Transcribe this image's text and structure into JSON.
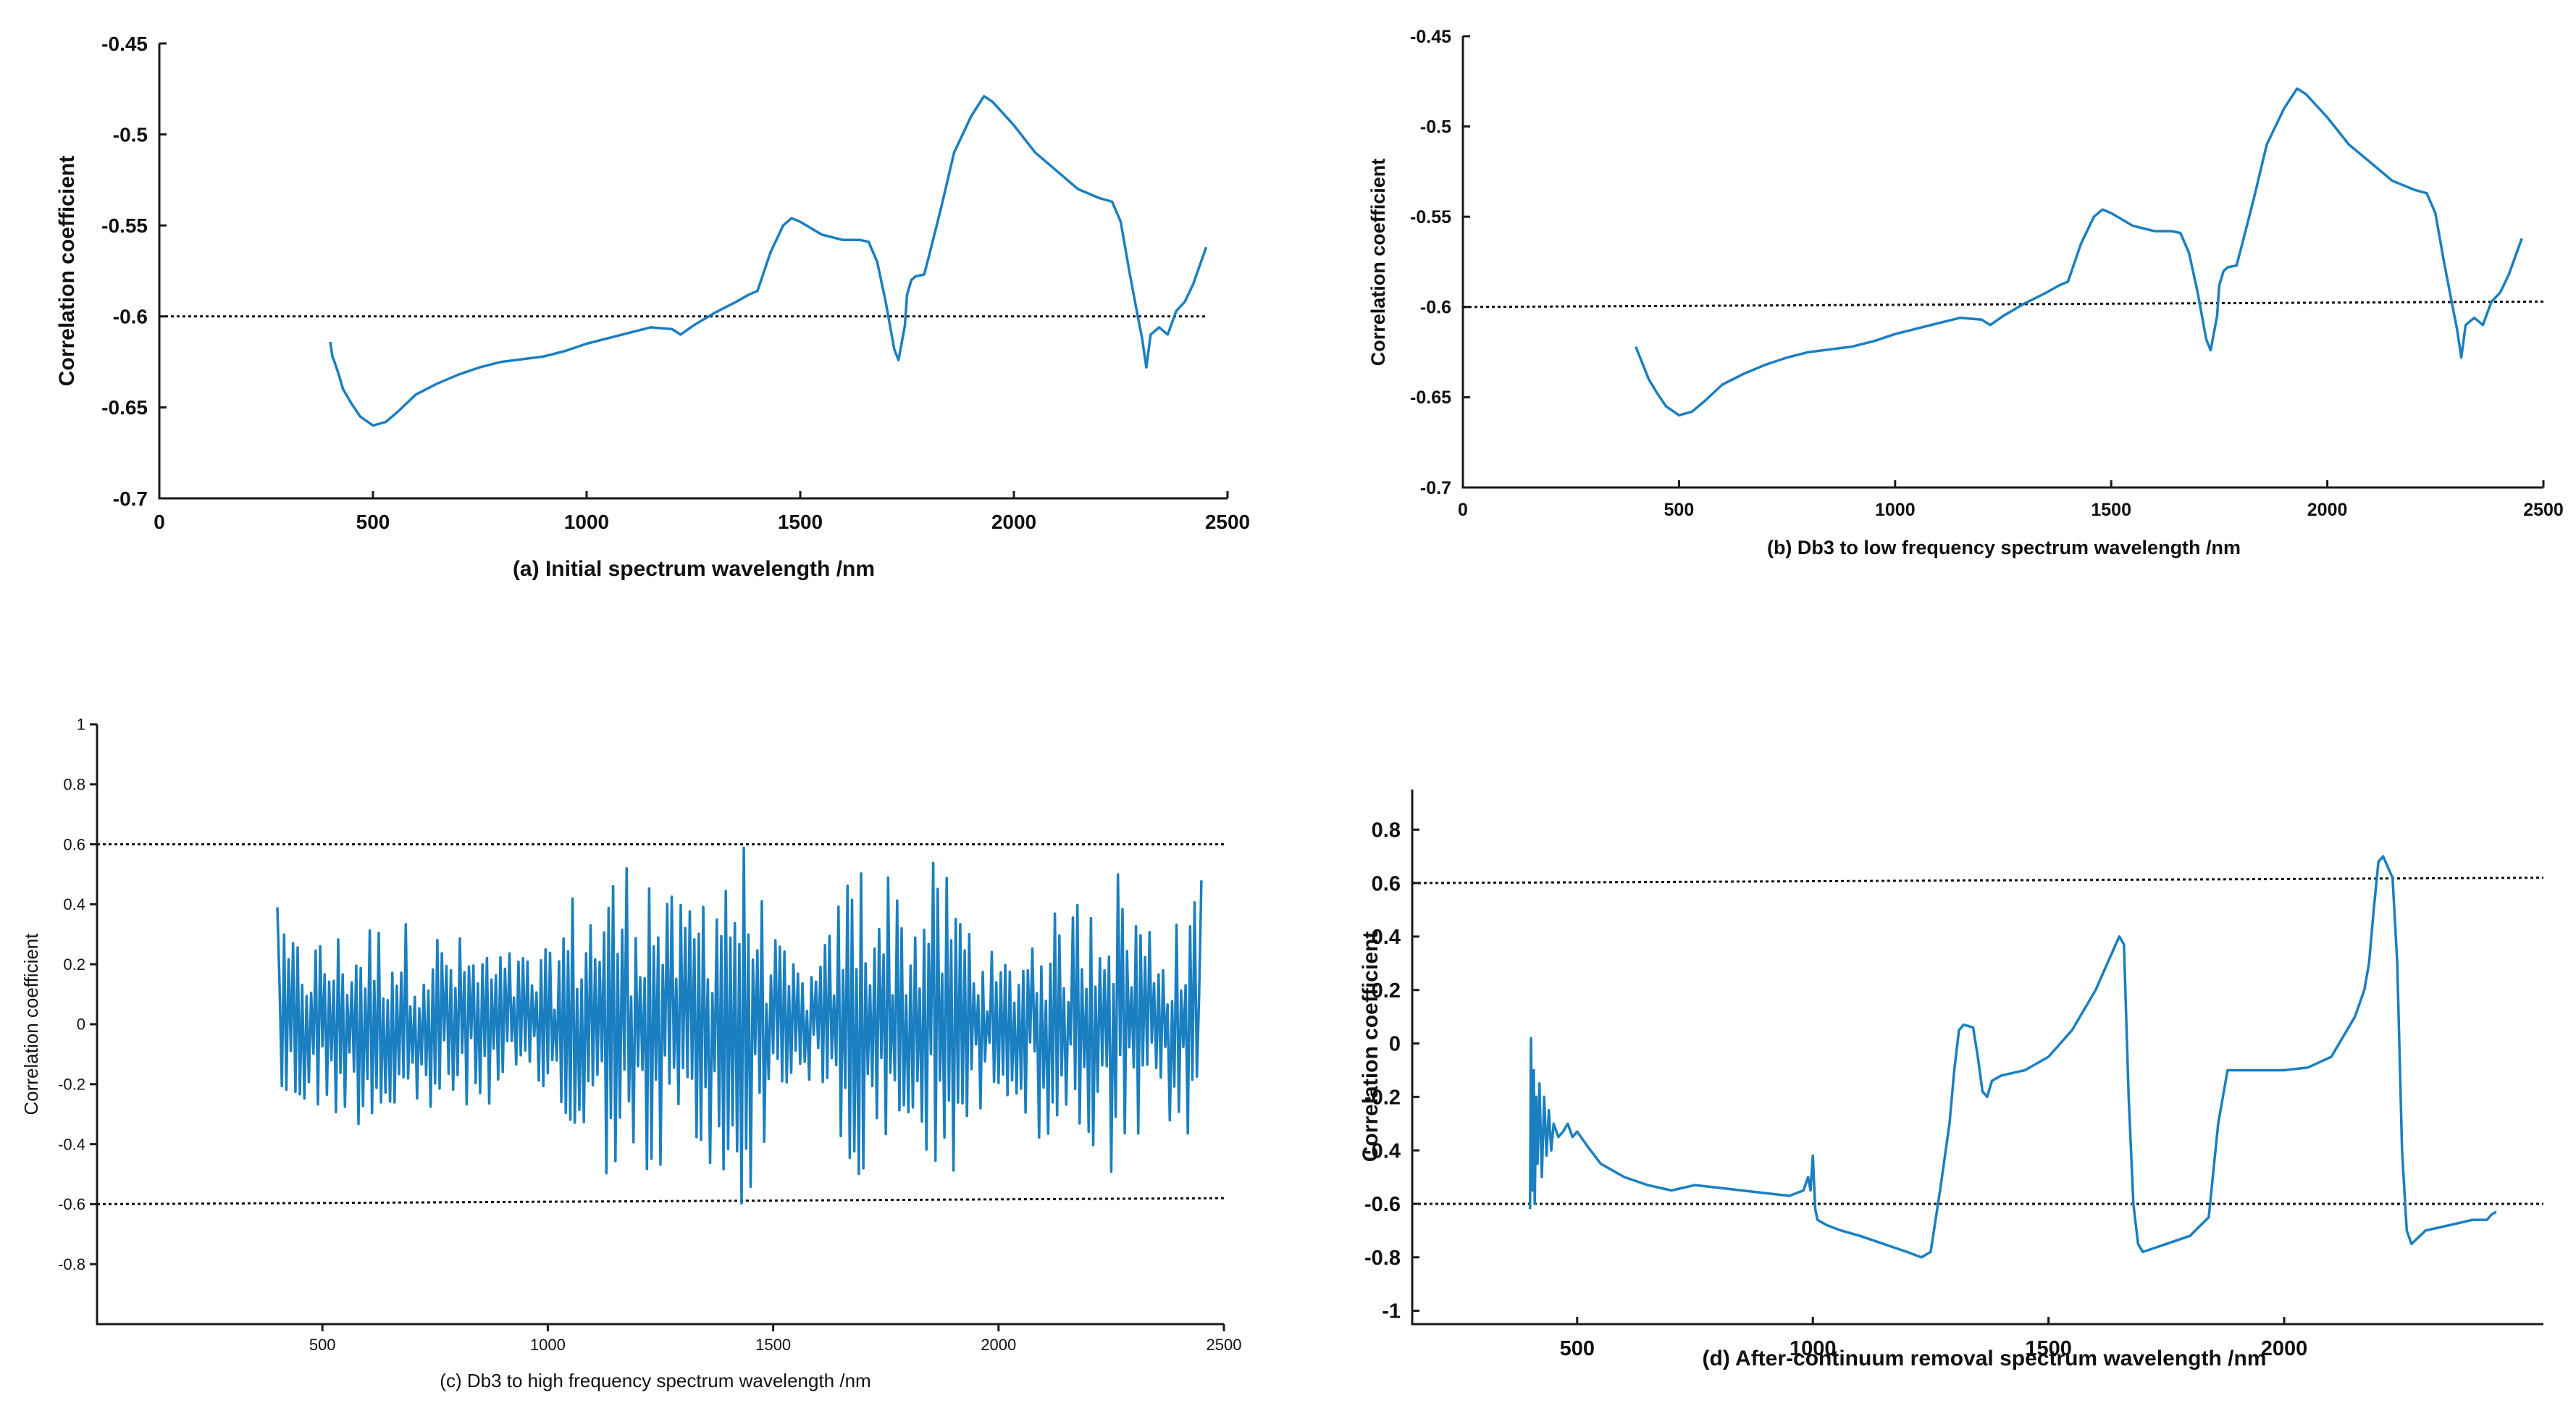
{
  "colors": {
    "series": "#1a7fc1",
    "axis": "#1a1a1a",
    "reference": "#111111"
  },
  "chart_data": [
    {
      "id": "a",
      "type": "line",
      "xlabel": "(a)  Initial spectrum wavelength /nm",
      "ylabel": "Correlation coefficient",
      "xlim": [
        0,
        2500
      ],
      "ylim": [
        -0.7,
        -0.45
      ],
      "xticks": [
        0,
        500,
        1000,
        1500,
        2000,
        2500
      ],
      "xtick_labels": [
        "0",
        "500",
        "1000",
        "1500",
        "2000",
        "2500"
      ],
      "yticks": [
        -0.7,
        -0.65,
        -0.6,
        -0.55,
        -0.5,
        -0.45
      ],
      "ytick_labels": [
        "-0.7",
        "-0.65",
        "-0.6",
        "-0.55",
        "-0.5",
        "-0.45"
      ],
      "reference_lines": [
        {
          "y": -0.6,
          "x_from": 0,
          "x_to": 2450
        }
      ],
      "series": [
        {
          "name": "correlation",
          "x": [
            400,
            405,
            410,
            420,
            430,
            450,
            470,
            500,
            530,
            560,
            600,
            650,
            700,
            750,
            800,
            900,
            950,
            1000,
            1050,
            1100,
            1150,
            1200,
            1220,
            1250,
            1300,
            1350,
            1380,
            1400,
            1430,
            1460,
            1480,
            1500,
            1550,
            1600,
            1640,
            1660,
            1680,
            1700,
            1720,
            1730,
            1745,
            1750,
            1760,
            1770,
            1790,
            1800,
            1830,
            1860,
            1900,
            1930,
            1950,
            2000,
            2050,
            2100,
            2150,
            2200,
            2230,
            2250,
            2270,
            2290,
            2300,
            2310,
            2320,
            2340,
            2350,
            2360,
            2380,
            2400,
            2420,
            2450
          ],
          "y": [
            -0.614,
            -0.622,
            -0.625,
            -0.632,
            -0.64,
            -0.648,
            -0.655,
            -0.66,
            -0.658,
            -0.652,
            -0.643,
            -0.637,
            -0.632,
            -0.628,
            -0.625,
            -0.622,
            -0.619,
            -0.615,
            -0.612,
            -0.609,
            -0.606,
            -0.607,
            -0.61,
            -0.605,
            -0.598,
            -0.592,
            -0.588,
            -0.586,
            -0.565,
            -0.55,
            -0.546,
            -0.548,
            -0.555,
            -0.558,
            -0.558,
            -0.559,
            -0.57,
            -0.592,
            -0.618,
            -0.624,
            -0.605,
            -0.588,
            -0.58,
            -0.578,
            -0.577,
            -0.568,
            -0.54,
            -0.51,
            -0.49,
            -0.479,
            -0.482,
            -0.495,
            -0.51,
            -0.52,
            -0.53,
            -0.535,
            -0.537,
            -0.548,
            -0.575,
            -0.6,
            -0.612,
            -0.628,
            -0.61,
            -0.606,
            -0.608,
            -0.61,
            -0.597,
            -0.592,
            -0.582,
            -0.562
          ]
        }
      ]
    },
    {
      "id": "b",
      "type": "line",
      "xlabel": "(b)  Db3 to low frequency spectrum wavelength /nm",
      "ylabel": "Correlation coefficient",
      "xlim": [
        0,
        2500
      ],
      "ylim": [
        -0.7,
        -0.45
      ],
      "xticks": [
        0,
        500,
        1000,
        1500,
        2000,
        2500
      ],
      "xtick_labels": [
        "0",
        "500",
        "1000",
        "1500",
        "2000",
        "2500"
      ],
      "yticks": [
        -0.7,
        -0.65,
        -0.6,
        -0.55,
        -0.5,
        -0.45
      ],
      "ytick_labels": [
        "-0.7",
        "-0.65",
        "-0.6",
        "-0.55",
        "-0.5",
        "-0.45"
      ],
      "reference_lines": [
        {
          "y": -0.6,
          "x_from": 0,
          "x_to": 2500,
          "y_end": -0.597
        }
      ],
      "series": [
        {
          "name": "correlation",
          "x": [
            400,
            410,
            430,
            450,
            470,
            500,
            530,
            560,
            600,
            650,
            700,
            750,
            800,
            900,
            950,
            1000,
            1050,
            1100,
            1150,
            1200,
            1220,
            1250,
            1300,
            1350,
            1380,
            1400,
            1430,
            1460,
            1480,
            1500,
            1550,
            1600,
            1640,
            1660,
            1680,
            1700,
            1720,
            1730,
            1745,
            1750,
            1760,
            1770,
            1790,
            1800,
            1830,
            1860,
            1900,
            1930,
            1950,
            2000,
            2050,
            2100,
            2150,
            2200,
            2230,
            2250,
            2270,
            2290,
            2300,
            2310,
            2320,
            2340,
            2350,
            2360,
            2380,
            2400,
            2420,
            2450
          ],
          "y": [
            -0.622,
            -0.628,
            -0.64,
            -0.648,
            -0.655,
            -0.66,
            -0.658,
            -0.652,
            -0.643,
            -0.637,
            -0.632,
            -0.628,
            -0.625,
            -0.622,
            -0.619,
            -0.615,
            -0.612,
            -0.609,
            -0.606,
            -0.607,
            -0.61,
            -0.605,
            -0.598,
            -0.592,
            -0.588,
            -0.586,
            -0.565,
            -0.55,
            -0.546,
            -0.548,
            -0.555,
            -0.558,
            -0.558,
            -0.559,
            -0.57,
            -0.592,
            -0.618,
            -0.624,
            -0.605,
            -0.588,
            -0.58,
            -0.578,
            -0.577,
            -0.568,
            -0.54,
            -0.51,
            -0.49,
            -0.479,
            -0.482,
            -0.495,
            -0.51,
            -0.52,
            -0.53,
            -0.535,
            -0.537,
            -0.548,
            -0.575,
            -0.6,
            -0.612,
            -0.628,
            -0.61,
            -0.606,
            -0.608,
            -0.61,
            -0.597,
            -0.592,
            -0.582,
            -0.562
          ]
        }
      ]
    },
    {
      "id": "c",
      "type": "line",
      "xlabel": "(c) Db3 to high frequency spectrum wavelength /nm",
      "ylabel": "Correlation coefficient",
      "xlim": [
        0,
        2500
      ],
      "ylim": [
        -1,
        1
      ],
      "xticks": [
        500,
        1000,
        1500,
        2000,
        2500
      ],
      "xtick_labels": [
        "500",
        "1000",
        "1500",
        "2000",
        "2500"
      ],
      "yticks": [
        -0.8,
        -0.6,
        -0.4,
        -0.2,
        0,
        0.2,
        0.4,
        0.6,
        0.8,
        1
      ],
      "ytick_labels": [
        "-0.8",
        "-0.6",
        "-0.4",
        "-0.2",
        "0",
        "0.2",
        "0.4",
        "0.6",
        "0.8",
        "1"
      ],
      "reference_lines": [
        {
          "y": 0.6,
          "x_from": 0,
          "x_to": 2500
        },
        {
          "y": -0.6,
          "x_from": 0,
          "x_to": 2500,
          "y_end": -0.58
        }
      ],
      "series": [
        {
          "name": "correlation",
          "x_start": 400,
          "x_end": 2450,
          "step": 5,
          "amplitude_envelope": {
            "x": [
              400,
              500,
              600,
              700,
              800,
              900,
              1000,
              1050,
              1100,
              1150,
              1200,
              1230,
              1260,
              1300,
              1350,
              1390,
              1420,
              1450,
              1480,
              1520,
              1560,
              1600,
              1640,
              1670,
              1700,
              1740,
              1780,
              1800,
              1830,
              1860,
              1900,
              1950,
              2000,
              2050,
              2100,
              2150,
              2200,
              2230,
              2260,
              2300,
              2350,
              2400,
              2450
            ],
            "amp": [
              0.3,
              0.3,
              0.35,
              0.35,
              0.3,
              0.25,
              0.25,
              0.45,
              0.45,
              0.55,
              0.6,
              0.6,
              0.45,
              0.4,
              0.55,
              0.65,
              0.65,
              0.6,
              0.4,
              0.25,
              0.2,
              0.2,
              0.4,
              0.55,
              0.6,
              0.55,
              0.5,
              0.35,
              0.5,
              0.55,
              0.5,
              0.35,
              0.2,
              0.3,
              0.4,
              0.35,
              0.55,
              0.6,
              0.55,
              0.45,
              0.35,
              0.35,
              0.45
            ]
          },
          "ends": {
            "first": 0.39,
            "last": 0.48
          }
        }
      ]
    },
    {
      "id": "d",
      "type": "line",
      "xlabel": "(d)  After-continuum removal spectrum wavelength /nm",
      "ylabel": "Correlation coefficient",
      "xlim": [
        150,
        2550
      ],
      "ylim": [
        -1.05,
        0.95
      ],
      "xticks": [
        500,
        1000,
        1500,
        2000
      ],
      "xtick_labels": [
        "500",
        "1000",
        "1500",
        "2000"
      ],
      "yticks": [
        -1,
        -0.8,
        -0.6,
        -0.4,
        -0.2,
        0,
        0.2,
        0.4,
        0.6,
        0.8
      ],
      "ytick_labels": [
        "-1",
        "-0.8",
        "-0.6",
        "-0.4",
        "-0.2",
        "0",
        "0.2",
        "0.4",
        "0.6",
        "0.8"
      ],
      "reference_lines": [
        {
          "y": 0.6,
          "x_from": 150,
          "x_to": 2550,
          "y_end": 0.62
        },
        {
          "y": -0.6,
          "x_from": 150,
          "x_to": 2550,
          "y_end": -0.6
        }
      ],
      "series": [
        {
          "name": "correlation",
          "x": [
            400,
            402,
            405,
            408,
            410,
            413,
            416,
            420,
            425,
            430,
            435,
            440,
            445,
            450,
            460,
            470,
            480,
            490,
            500,
            520,
            550,
            600,
            650,
            700,
            750,
            800,
            850,
            900,
            950,
            980,
            990,
            995,
            1000,
            1005,
            1010,
            1030,
            1060,
            1100,
            1150,
            1200,
            1230,
            1250,
            1270,
            1290,
            1300,
            1310,
            1320,
            1340,
            1350,
            1360,
            1370,
            1380,
            1400,
            1450,
            1500,
            1550,
            1600,
            1630,
            1650,
            1660,
            1670,
            1680,
            1690,
            1700,
            1750,
            1800,
            1840,
            1860,
            1880,
            1900,
            1950,
            2000,
            2050,
            2100,
            2150,
            2170,
            2180,
            2190,
            2200,
            2210,
            2220,
            2230,
            2240,
            2250,
            2260,
            2270,
            2300,
            2350,
            2400,
            2430,
            2440,
            2450
          ],
          "y": [
            -0.62,
            0.02,
            -0.55,
            -0.1,
            -0.6,
            -0.2,
            -0.45,
            -0.15,
            -0.5,
            -0.2,
            -0.42,
            -0.25,
            -0.4,
            -0.3,
            -0.35,
            -0.33,
            -0.3,
            -0.35,
            -0.33,
            -0.38,
            -0.45,
            -0.5,
            -0.53,
            -0.55,
            -0.53,
            -0.54,
            -0.55,
            -0.56,
            -0.57,
            -0.55,
            -0.5,
            -0.55,
            -0.42,
            -0.62,
            -0.66,
            -0.68,
            -0.7,
            -0.72,
            -0.75,
            -0.78,
            -0.8,
            -0.78,
            -0.55,
            -0.3,
            -0.1,
            0.05,
            0.07,
            0.06,
            -0.05,
            -0.18,
            -0.2,
            -0.14,
            -0.12,
            -0.1,
            -0.05,
            0.05,
            0.2,
            0.32,
            0.4,
            0.37,
            -0.2,
            -0.6,
            -0.75,
            -0.78,
            -0.75,
            -0.72,
            -0.65,
            -0.3,
            -0.1,
            -0.1,
            -0.1,
            -0.1,
            -0.09,
            -0.05,
            0.1,
            0.2,
            0.3,
            0.5,
            0.68,
            0.7,
            0.66,
            0.62,
            0.3,
            -0.4,
            -0.7,
            -0.75,
            -0.7,
            -0.68,
            -0.66,
            -0.66,
            -0.64,
            -0.63
          ]
        }
      ]
    }
  ]
}
